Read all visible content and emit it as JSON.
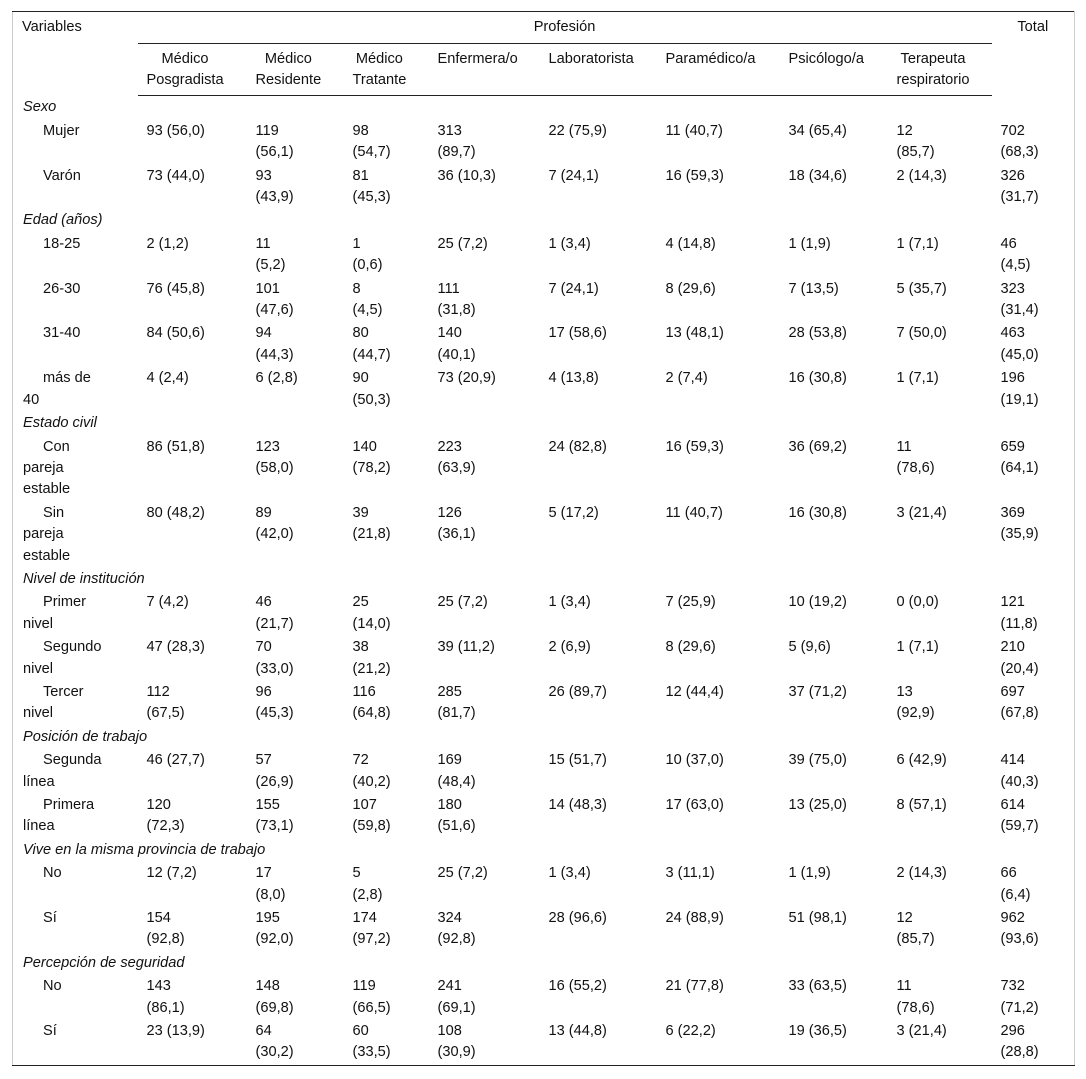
{
  "table": {
    "header": {
      "variables": "Variables",
      "group": "Profesión",
      "total": "Total",
      "columns": [
        "Médico Posgradista",
        "Médico Residente",
        "Médico Tratante",
        "Enfermera/o",
        "Laboratorista",
        "Paramédico/a",
        "Psicólogo/a",
        "Terapeuta respiratorio"
      ]
    },
    "sections": [
      {
        "title": "Sexo",
        "rows": [
          {
            "label": "Mujer",
            "cells": [
              "93 (56,0)",
              "119 (56,1)",
              "98 (54,7)",
              "313 (89,7)",
              "22 (75,9)",
              "11 (40,7)",
              "34 (65,4)",
              "12 (85,7)",
              "702 (68,3)"
            ]
          },
          {
            "label": "Varón",
            "cells": [
              "73 (44,0)",
              "93 (43,9)",
              "81 (45,3)",
              "36 (10,3)",
              "7 (24,1)",
              "16 (59,3)",
              "18 (34,6)",
              "2 (14,3)",
              "326 (31,7)"
            ]
          }
        ]
      },
      {
        "title": "Edad (años)",
        "rows": [
          {
            "label": "18-25",
            "cells": [
              "2 (1,2)",
              "11 (5,2)",
              "1 (0,6)",
              "25 (7,2)",
              "1 (3,4)",
              "4 (14,8)",
              "1 (1,9)",
              "1 (7,1)",
              "46 (4,5)"
            ]
          },
          {
            "label": "26-30",
            "cells": [
              "76 (45,8)",
              "101 (47,6)",
              "8 (4,5)",
              "111 (31,8)",
              "7 (24,1)",
              "8 (29,6)",
              "7 (13,5)",
              "5 (35,7)",
              "323 (31,4)"
            ]
          },
          {
            "label": "31-40",
            "cells": [
              "84 (50,6)",
              "94 (44,3)",
              "80 (44,7)",
              "140 (40,1)",
              "17 (58,6)",
              "13 (48,1)",
              "28 (53,8)",
              "7 (50,0)",
              "463 (45,0)"
            ]
          },
          {
            "label": "más de 40",
            "cells": [
              "4 (2,4)",
              "6 (2,8)",
              "90 (50,3)",
              "73 (20,9)",
              "4 (13,8)",
              "2 (7,4)",
              "16 (30,8)",
              "1 (7,1)",
              "196 (19,1)"
            ]
          }
        ]
      },
      {
        "title": "Estado civil",
        "rows": [
          {
            "label": "Con pareja estable",
            "cells": [
              "86 (51,8)",
              "123 (58,0)",
              "140 (78,2)",
              "223 (63,9)",
              "24 (82,8)",
              "16 (59,3)",
              "36 (69,2)",
              "11 (78,6)",
              "659 (64,1)"
            ]
          },
          {
            "label": "Sin pareja estable",
            "cells": [
              "80 (48,2)",
              "89 (42,0)",
              "39 (21,8)",
              "126 (36,1)",
              "5 (17,2)",
              "11 (40,7)",
              "16 (30,8)",
              "3 (21,4)",
              "369 (35,9)"
            ]
          }
        ]
      },
      {
        "title": "Nivel de institución",
        "rows": [
          {
            "label": "Primer nivel",
            "cells": [
              "7 (4,2)",
              "46 (21,7)",
              "25 (14,0)",
              "25 (7,2)",
              "1 (3,4)",
              "7 (25,9)",
              "10 (19,2)",
              "0 (0,0)",
              "121 (11,8)"
            ]
          },
          {
            "label": "Segundo nivel",
            "cells": [
              "47 (28,3)",
              "70 (33,0)",
              "38 (21,2)",
              "39 (11,2)",
              "2 (6,9)",
              "8 (29,6)",
              "5 (9,6)",
              "1 (7,1)",
              "210 (20,4)"
            ]
          },
          {
            "label": "Tercer nivel",
            "cells": [
              "112 (67,5)",
              "96 (45,3)",
              "116 (64,8)",
              "285 (81,7)",
              "26 (89,7)",
              "12 (44,4)",
              "37 (71,2)",
              "13 (92,9)",
              "697 (67,8)"
            ]
          }
        ]
      },
      {
        "title": "Posición de trabajo",
        "rows": [
          {
            "label": "Segunda línea",
            "cells": [
              "46 (27,7)",
              "57 (26,9)",
              "72 (40,2)",
              "169 (48,4)",
              "15 (51,7)",
              "10 (37,0)",
              "39 (75,0)",
              "6 (42,9)",
              "414 (40,3)"
            ]
          },
          {
            "label": "Primera línea",
            "cells": [
              "120 (72,3)",
              "155 (73,1)",
              "107 (59,8)",
              "180 (51,6)",
              "14 (48,3)",
              "17 (63,0)",
              "13 (25,0)",
              "8 (57,1)",
              "614 (59,7)"
            ]
          }
        ]
      },
      {
        "title": "Vive en la misma provincia de trabajo",
        "rows": [
          {
            "label": "No",
            "cells": [
              "12 (7,2)",
              "17 (8,0)",
              "5 (2,8)",
              "25 (7,2)",
              "1 (3,4)",
              "3 (11,1)",
              "1 (1,9)",
              "2 (14,3)",
              "66 (6,4)"
            ]
          },
          {
            "label": "Sí",
            "cells": [
              "154 (92,8)",
              "195 (92,0)",
              "174 (97,2)",
              "324 (92,8)",
              "28 (96,6)",
              "24 (88,9)",
              "51 (98,1)",
              "12 (85,7)",
              "962 (93,6)"
            ]
          }
        ]
      },
      {
        "title": "Percepción de seguridad",
        "rows": [
          {
            "label": "No",
            "cells": [
              "143 (86,1)",
              "148 (69,8)",
              "119 (66,5)",
              "241 (69,1)",
              "16 (55,2)",
              "21 (77,8)",
              "33 (63,5)",
              "11 (78,6)",
              "732 (71,2)"
            ]
          },
          {
            "label": "Sí",
            "cells": [
              "23 (13,9)",
              "64 (30,2)",
              "60 (33,5)",
              "108 (30,9)",
              "13 (44,8)",
              "6 (22,2)",
              "19 (36,5)",
              "3 (21,4)",
              "296 (28,8)"
            ]
          }
        ]
      }
    ]
  }
}
